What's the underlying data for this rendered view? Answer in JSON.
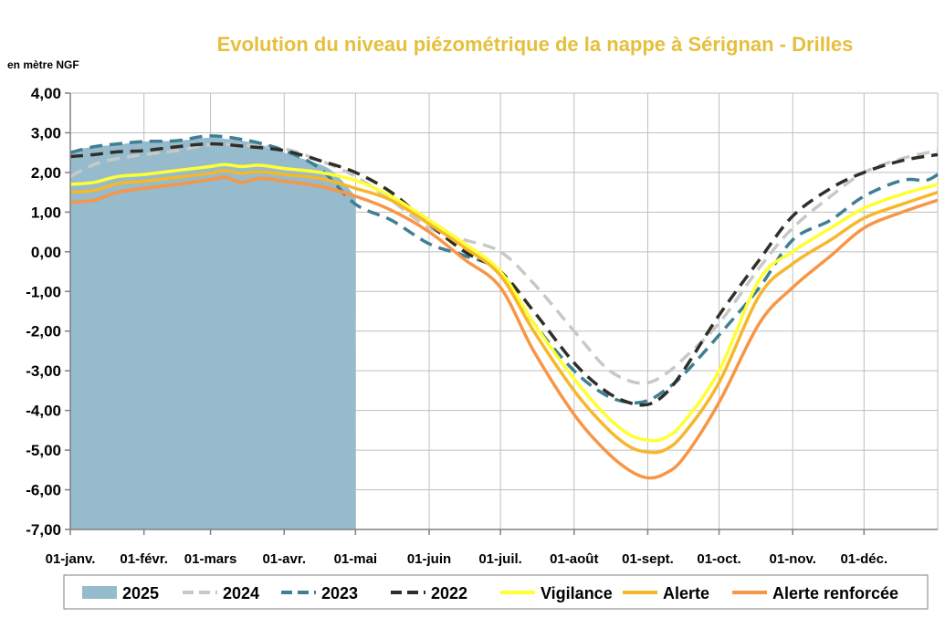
{
  "chart_data": {
    "type": "line",
    "title": "Evolution du niveau piézométrique de la nappe à Sérignan  - Drilles",
    "title_color": "#E6BF3C",
    "ylabel": "en mètre NGF",
    "ylim": [
      -7,
      4
    ],
    "yticks": [
      4,
      3,
      2,
      1,
      0,
      -1,
      -2,
      -3,
      -4,
      -5,
      -6,
      -7
    ],
    "ytick_labels": [
      "4,00",
      "3,00",
      "2,00",
      "1,00",
      "0,00",
      "-1,00",
      "-2,00",
      "-3,00",
      "-4,00",
      "-5,00",
      "-6,00",
      "-7,00"
    ],
    "xlim": [
      0,
      365
    ],
    "xticks": [
      0,
      31,
      59,
      90,
      120,
      151,
      181,
      212,
      243,
      273,
      304,
      334
    ],
    "xtick_labels": [
      "01-janv.",
      "01-févr.",
      "01-mars",
      "01-avr.",
      "01-mai",
      "01-juin",
      "01-juil.",
      "01-août",
      "01-sept.",
      "01-oct.",
      "01-nov.",
      "01-déc."
    ],
    "grid": true,
    "legend_position": "bottom",
    "series": [
      {
        "name": "2025",
        "kind": "area",
        "color": "#95BBCC",
        "x": [
          0,
          10,
          20,
          31,
          45,
          59,
          65,
          72,
          80,
          90,
          100,
          110,
          120
        ],
        "y": [
          2.55,
          2.65,
          2.7,
          2.78,
          2.8,
          2.88,
          2.85,
          2.8,
          2.7,
          2.5,
          2.3,
          2.05,
          1.4
        ]
      },
      {
        "name": "2024",
        "kind": "dash",
        "color": "#C8C8C8",
        "x": [
          0,
          10,
          20,
          31,
          45,
          59,
          75,
          90,
          105,
          120,
          135,
          151,
          166,
          181,
          195,
          212,
          225,
          235,
          243,
          250,
          258,
          273,
          290,
          304,
          320,
          334,
          350,
          365
        ],
        "y": [
          1.9,
          2.2,
          2.35,
          2.45,
          2.55,
          2.7,
          2.68,
          2.6,
          2.3,
          1.9,
          1.3,
          0.6,
          0.3,
          0.0,
          -0.8,
          -2.0,
          -2.9,
          -3.25,
          -3.3,
          -3.1,
          -2.7,
          -1.8,
          -0.4,
          0.6,
          1.4,
          2.0,
          2.35,
          2.55
        ]
      },
      {
        "name": "2023",
        "kind": "dash",
        "color": "#3F7F94",
        "x": [
          0,
          10,
          20,
          31,
          45,
          59,
          75,
          90,
          105,
          120,
          135,
          151,
          166,
          181,
          195,
          212,
          225,
          235,
          243,
          250,
          258,
          273,
          290,
          304,
          320,
          334,
          350,
          360,
          365
        ],
        "y": [
          2.5,
          2.65,
          2.72,
          2.78,
          2.8,
          2.92,
          2.8,
          2.55,
          2.1,
          1.2,
          0.8,
          0.2,
          -0.1,
          -0.5,
          -1.8,
          -3.0,
          -3.6,
          -3.8,
          -3.75,
          -3.5,
          -3.1,
          -2.1,
          -0.9,
          0.3,
          0.8,
          1.4,
          1.8,
          1.8,
          1.95
        ]
      },
      {
        "name": "2022",
        "kind": "dash",
        "color": "#2F2F27",
        "x": [
          0,
          10,
          20,
          31,
          45,
          59,
          75,
          90,
          105,
          120,
          135,
          151,
          166,
          181,
          195,
          212,
          225,
          235,
          243,
          250,
          258,
          273,
          290,
          304,
          320,
          334,
          350,
          365
        ],
        "y": [
          2.4,
          2.45,
          2.52,
          2.55,
          2.65,
          2.72,
          2.65,
          2.55,
          2.3,
          2.0,
          1.5,
          0.7,
          0.0,
          -0.5,
          -1.5,
          -2.8,
          -3.5,
          -3.8,
          -3.85,
          -3.6,
          -3.0,
          -1.6,
          -0.2,
          0.9,
          1.6,
          2.0,
          2.3,
          2.45
        ]
      },
      {
        "name": "Vigilance",
        "kind": "solid",
        "color": "#FFFF33",
        "x": [
          0,
          10,
          20,
          31,
          45,
          59,
          65,
          72,
          80,
          90,
          105,
          120,
          135,
          151,
          166,
          181,
          195,
          212,
          225,
          235,
          243,
          250,
          258,
          273,
          290,
          304,
          320,
          334,
          350,
          365
        ],
        "y": [
          1.7,
          1.75,
          1.9,
          1.95,
          2.05,
          2.15,
          2.2,
          2.15,
          2.18,
          2.1,
          2.0,
          1.8,
          1.4,
          0.8,
          0.2,
          -0.5,
          -1.8,
          -3.2,
          -4.1,
          -4.6,
          -4.75,
          -4.7,
          -4.3,
          -3.0,
          -0.7,
          0.0,
          0.6,
          1.1,
          1.45,
          1.7
        ]
      },
      {
        "name": "Alerte",
        "kind": "solid",
        "color": "#F7B72A",
        "x": [
          0,
          10,
          20,
          31,
          45,
          59,
          65,
          72,
          80,
          90,
          105,
          120,
          135,
          151,
          166,
          181,
          195,
          212,
          225,
          235,
          243,
          250,
          258,
          273,
          290,
          304,
          320,
          334,
          350,
          365
        ],
        "y": [
          1.5,
          1.55,
          1.72,
          1.78,
          1.88,
          1.98,
          2.05,
          1.98,
          2.02,
          1.95,
          1.85,
          1.6,
          1.3,
          0.7,
          0.1,
          -0.6,
          -2.0,
          -3.5,
          -4.4,
          -4.9,
          -5.05,
          -5.0,
          -4.6,
          -3.3,
          -1.1,
          -0.3,
          0.3,
          0.85,
          1.2,
          1.5
        ]
      },
      {
        "name": "Alerte renforcée",
        "kind": "solid",
        "color": "#F79646",
        "x": [
          0,
          10,
          20,
          31,
          45,
          59,
          65,
          72,
          80,
          90,
          105,
          120,
          135,
          151,
          166,
          181,
          195,
          212,
          225,
          235,
          243,
          250,
          258,
          273,
          290,
          304,
          320,
          334,
          350,
          365
        ],
        "y": [
          1.25,
          1.3,
          1.5,
          1.6,
          1.7,
          1.82,
          1.88,
          1.75,
          1.85,
          1.78,
          1.65,
          1.4,
          1.05,
          0.5,
          -0.2,
          -0.9,
          -2.5,
          -4.1,
          -5.0,
          -5.5,
          -5.7,
          -5.6,
          -5.2,
          -3.8,
          -1.8,
          -0.9,
          -0.1,
          0.6,
          1.0,
          1.3
        ]
      }
    ]
  }
}
